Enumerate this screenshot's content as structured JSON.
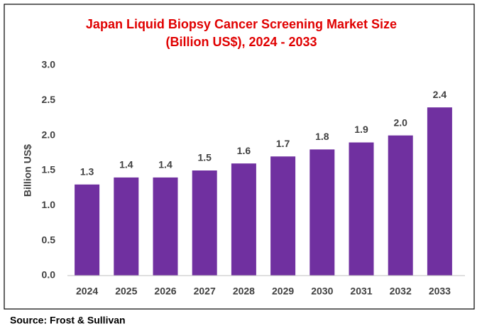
{
  "chart_data": {
    "type": "bar",
    "title": [
      "Japan Liquid Biopsy Cancer Screening Market Size",
      "(Billion US$), 2024 - 2033"
    ],
    "y_label": "Billion US$",
    "source": "Source: Frost & Sullivan",
    "categories": [
      "2024",
      "2025",
      "2026",
      "2027",
      "2028",
      "2029",
      "2030",
      "2031",
      "2032",
      "2033"
    ],
    "values": [
      1.3,
      1.4,
      1.4,
      1.5,
      1.6,
      1.7,
      1.8,
      1.9,
      2.0,
      2.4
    ],
    "value_labels": [
      "1.3",
      "1.4",
      "1.4",
      "1.5",
      "1.6",
      "1.7",
      "1.8",
      "1.9",
      "2.0",
      "2.4"
    ],
    "color": "#7030a0",
    "ylim": [
      0,
      3
    ],
    "yticks": [
      {
        "value": 0,
        "label": "0.0"
      },
      {
        "value": 0.5,
        "label": "0.5"
      },
      {
        "value": 1,
        "label": "1.0"
      },
      {
        "value": 1.5,
        "label": "1.5"
      },
      {
        "value": 2,
        "label": "2.0"
      },
      {
        "value": 2.5,
        "label": "2.5"
      },
      {
        "value": 3,
        "label": "3.0"
      }
    ],
    "grid": false
  }
}
